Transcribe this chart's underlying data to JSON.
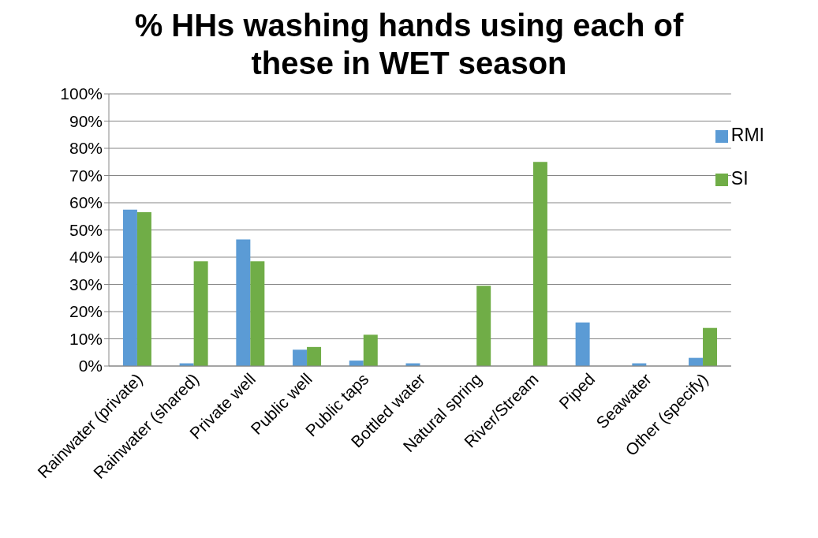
{
  "chart_data": {
    "type": "bar",
    "title": "% HHs washing hands using each of these in WET season",
    "categories": [
      "Rainwater (private)",
      "Rainwater (shared)",
      "Private well",
      "Public well",
      "Public taps",
      "Bottled water",
      "Natural spring",
      "River/Stream",
      "Piped",
      "Seawater",
      "Other (specify)"
    ],
    "series": [
      {
        "name": "RMI",
        "color": "#5b9bd5",
        "values": [
          57.5,
          1,
          46.5,
          6,
          2,
          1,
          0,
          0,
          16,
          1,
          3
        ]
      },
      {
        "name": "SI",
        "color": "#70ad47",
        "values": [
          56.5,
          38.5,
          38.5,
          7,
          11.5,
          0,
          29.5,
          75,
          0,
          0,
          14
        ]
      }
    ],
    "ylim": [
      0,
      100
    ],
    "yticks": [
      {
        "value": 0,
        "label": "0%"
      },
      {
        "value": 10,
        "label": "10%"
      },
      {
        "value": 20,
        "label": "20%"
      },
      {
        "value": 30,
        "label": "30%"
      },
      {
        "value": 40,
        "label": "40%"
      },
      {
        "value": 50,
        "label": "50%"
      },
      {
        "value": 60,
        "label": "60%"
      },
      {
        "value": 70,
        "label": "70%"
      },
      {
        "value": 80,
        "label": "80%"
      },
      {
        "value": 90,
        "label": "90%"
      },
      {
        "value": 100,
        "label": "100%"
      }
    ],
    "grid": "y",
    "legend": "top right"
  }
}
